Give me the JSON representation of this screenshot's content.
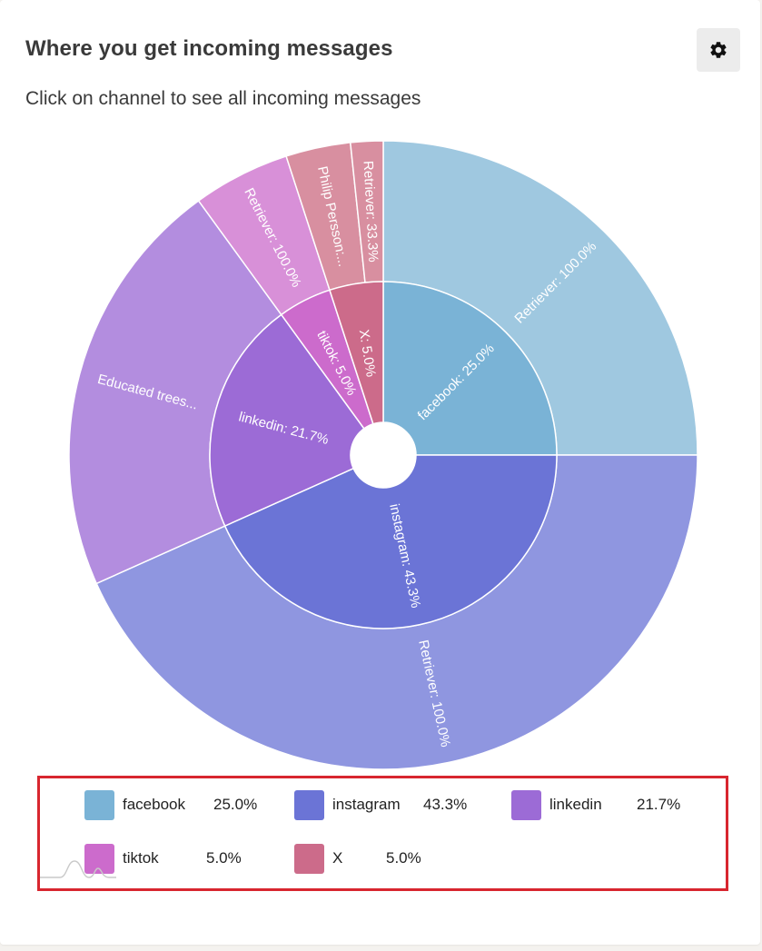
{
  "header": {
    "title": "Where you get incoming messages",
    "subtitle": "Click on channel to see all incoming messages",
    "settings_icon": "gear-icon"
  },
  "chart_data": {
    "type": "sunburst",
    "inner": [
      {
        "name": "facebook",
        "value": 25.0,
        "label": "facebook: 25.0%",
        "color": "#7ab3d6"
      },
      {
        "name": "instagram",
        "value": 43.3,
        "label": "instagram: 43.3%",
        "color": "#6b74d6"
      },
      {
        "name": "linkedin",
        "value": 21.7,
        "label": "linkedin: 21.7%",
        "color": "#9c6bd6"
      },
      {
        "name": "tiktok",
        "value": 5.0,
        "label": "tiktok: 5.0%",
        "color": "#cc6bcc"
      },
      {
        "name": "X",
        "value": 5.0,
        "label": "X: 5.0%",
        "color": "#cc6b8a"
      }
    ],
    "outer": [
      {
        "parent": "facebook",
        "value": 25.0,
        "label": "Retriever: 100.0%",
        "color": "#9fc8e0"
      },
      {
        "parent": "instagram",
        "value": 43.3,
        "label": "Retriever: 100.0%",
        "color": "#8f96e0"
      },
      {
        "parent": "linkedin",
        "value": 21.7,
        "label": "Educated trees...",
        "color": "#b38ddf"
      },
      {
        "parent": "tiktok",
        "value": 5.0,
        "label": "Retriever: 100.0%",
        "color": "#d890d8"
      },
      {
        "parent": "X",
        "value": 3.33,
        "label": "Philip Persson:...",
        "color": "#d88fa0"
      },
      {
        "parent": "X",
        "value": 1.67,
        "label": "Retriever: 33.3%",
        "color": "#d88fa0"
      }
    ]
  },
  "legend": {
    "items": [
      {
        "name": "facebook",
        "pct": "25.0%",
        "color": "#7ab3d6"
      },
      {
        "name": "instagram",
        "pct": "43.3%",
        "color": "#6b74d6"
      },
      {
        "name": "linkedin",
        "pct": "21.7%",
        "color": "#9c6bd6"
      },
      {
        "name": "tiktok",
        "pct": "5.0%",
        "color": "#cc6bcc"
      },
      {
        "name": "X",
        "pct": "5.0%",
        "color": "#cc6b8a"
      }
    ]
  }
}
